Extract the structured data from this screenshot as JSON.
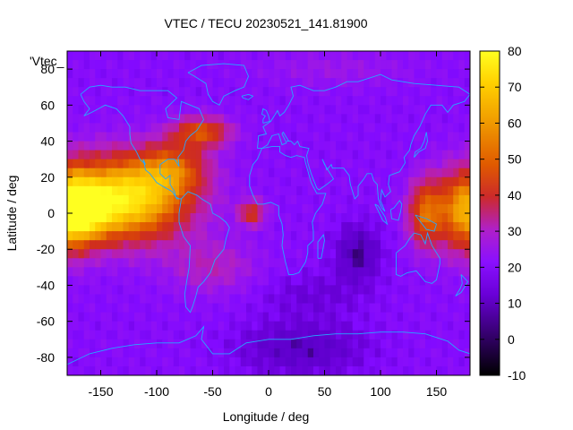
{
  "chart_data": {
    "type": "heatmap",
    "title": "VTEC / TECU 20230521_141.81900",
    "xlabel": "Longitude / deg",
    "ylabel": "Latitude / deg",
    "key_label": "'Vtec_",
    "xlim": [
      -180,
      180
    ],
    "ylim": [
      -90,
      90
    ],
    "x_ticks": [
      -150,
      -100,
      -50,
      0,
      50,
      100,
      150
    ],
    "y_ticks": [
      -80,
      -60,
      -40,
      -20,
      0,
      20,
      40,
      60,
      80
    ],
    "colorbar": {
      "range": [
        -10,
        80
      ],
      "ticks": [
        -10,
        0,
        10,
        20,
        30,
        40,
        50,
        60,
        70,
        80
      ],
      "palette": "black-blue-purple-red-orange-yellow"
    },
    "features": [
      {
        "name": "peak-americas",
        "lon": -125,
        "lat": 10,
        "value": 75
      },
      {
        "name": "peak-west-pacific",
        "lon": 170,
        "lat": 0,
        "value": 65
      },
      {
        "name": "minimum-indian-ocean",
        "lon": 80,
        "lat": -25,
        "value": 0
      },
      {
        "name": "minimum-antarctic",
        "lon": 20,
        "lat": -80,
        "value": 5
      }
    ]
  }
}
